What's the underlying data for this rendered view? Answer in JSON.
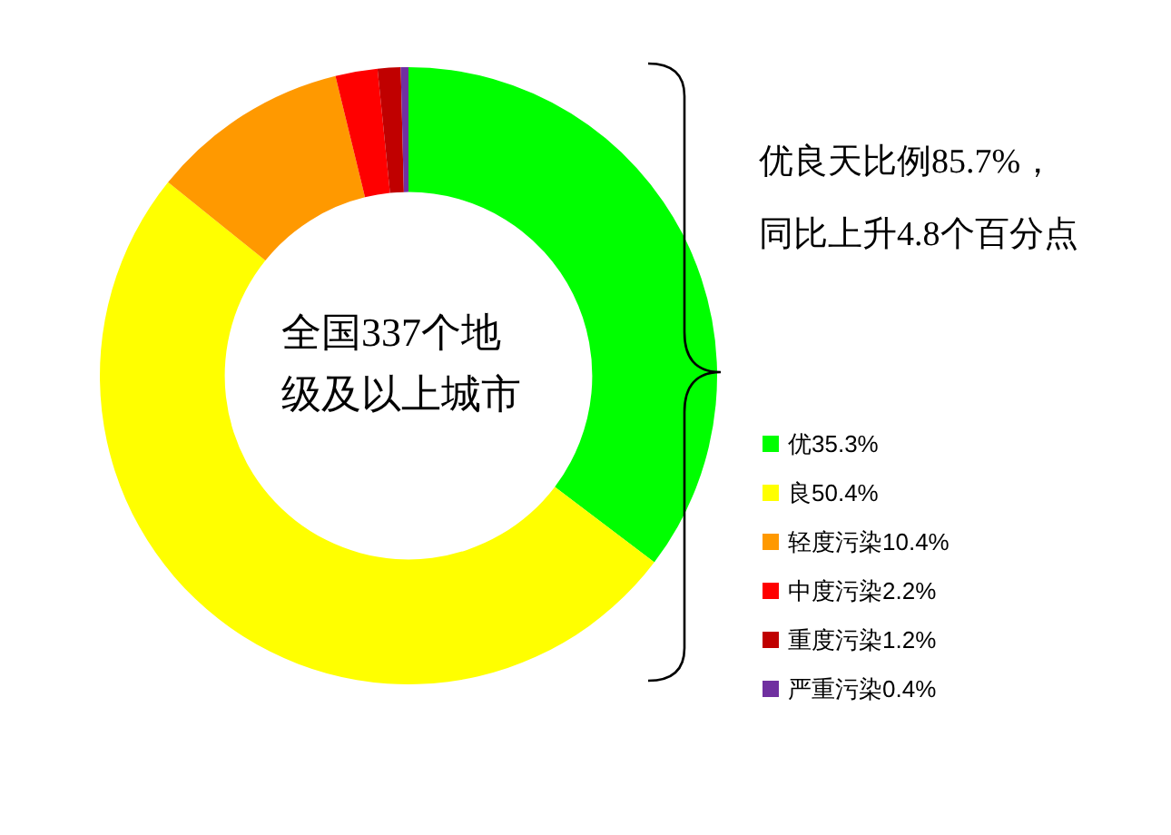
{
  "chart_data": {
    "type": "donut",
    "categories": [
      "优35.3%",
      "良50.4%",
      "轻度污染10.4%",
      "中度污染2.2%",
      "重度污染1.2%",
      "严重污染0.4%"
    ],
    "values": [
      35.3,
      50.4,
      10.4,
      2.2,
      1.2,
      0.4
    ],
    "colors": [
      "#00ff00",
      "#ffff00",
      "#ff9900",
      "#ff0000",
      "#c00000",
      "#7030a0"
    ],
    "legend": "right",
    "annotations": [
      "全国337个地",
      "级及以上城市",
      "优良天比例85.7%，",
      "同比上升4.8个百分点"
    ]
  }
}
